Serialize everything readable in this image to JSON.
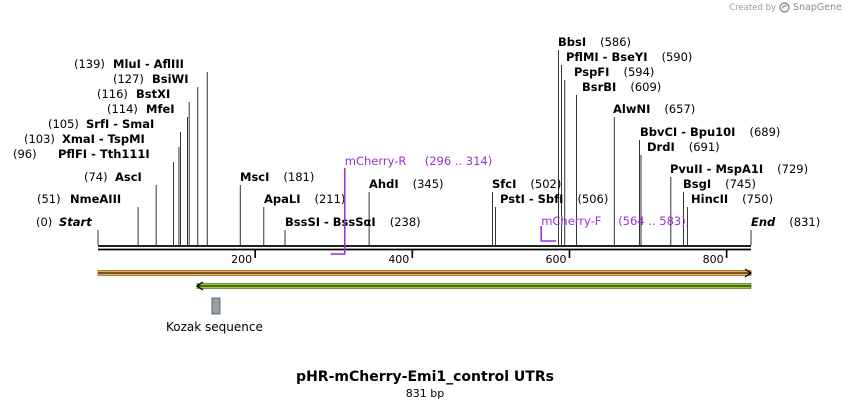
{
  "credit": {
    "prefix": "Created by",
    "brand": "SnapGene",
    "icon": "snapgene-logo-icon"
  },
  "title": "pHR-mCherry-Emi1_control UTRs",
  "length_label": "831 bp",
  "total_bp": 831,
  "ticks": [
    {
      "label": "200",
      "pos": 200
    },
    {
      "label": "400",
      "pos": 400
    },
    {
      "label": "600",
      "pos": 600
    },
    {
      "label": "800",
      "pos": 800
    }
  ],
  "sites": [
    {
      "id": "start",
      "num": "(0)",
      "name": "Start",
      "pos": 0,
      "style": "italic"
    },
    {
      "id": "nmeaiii",
      "num": "(51)",
      "name": "NmeAIII",
      "pos": 51
    },
    {
      "id": "asci",
      "num": "(74)",
      "name": "AscI",
      "pos": 74
    },
    {
      "id": "pflfi",
      "num": "(96)",
      "name": "PflFI  - Tth111I",
      "pos": 96
    },
    {
      "id": "xmai",
      "num": "(103)",
      "name": "XmaI  - TspMI",
      "pos": 103
    },
    {
      "id": "srfi",
      "num": "(105)",
      "name": "SrfI  - SmaI",
      "pos": 105
    },
    {
      "id": "mfei",
      "num": "(114)",
      "name": "MfeI",
      "pos": 114
    },
    {
      "id": "bstxi",
      "num": "(116)",
      "name": "BstXI",
      "pos": 116
    },
    {
      "id": "bsiwi",
      "num": "(127)",
      "name": "BsiWI",
      "pos": 127
    },
    {
      "id": "mlui",
      "num": "(139)",
      "name": "MluI  - AflIII",
      "pos": 139
    },
    {
      "id": "msci",
      "num": "(181)",
      "name": "MscI",
      "pos": 181
    },
    {
      "id": "apali",
      "num": "(211)",
      "name": "ApaLI",
      "pos": 211
    },
    {
      "id": "bsssi",
      "num": "(238)",
      "name": "BssSI  - BssSαI",
      "pos": 238
    },
    {
      "id": "ahdi",
      "num": "(345)",
      "name": "AhdI",
      "pos": 345
    },
    {
      "id": "sfci",
      "num": "(502)",
      "name": "SfcI",
      "pos": 502
    },
    {
      "id": "psti",
      "num": "(506)",
      "name": "PstI  - SbfI",
      "pos": 506
    },
    {
      "id": "bbsi",
      "num": "(586)",
      "name": "BbsI",
      "pos": 586
    },
    {
      "id": "pflmi",
      "num": "(590)",
      "name": "PflMI  - BseYI",
      "pos": 590
    },
    {
      "id": "pspfi",
      "num": "(594)",
      "name": "PspFI",
      "pos": 594
    },
    {
      "id": "bsrbi",
      "num": "(609)",
      "name": "BsrBI",
      "pos": 609
    },
    {
      "id": "alwni",
      "num": "(657)",
      "name": "AlwNI",
      "pos": 657
    },
    {
      "id": "bbvci",
      "num": "(689)",
      "name": "BbvCI  - Bpu10I",
      "pos": 689
    },
    {
      "id": "drdi",
      "num": "(691)",
      "name": "DrdI",
      "pos": 691
    },
    {
      "id": "pvuii",
      "num": "(729)",
      "name": "PvuII  - MspA1I",
      "pos": 729
    },
    {
      "id": "bsgi",
      "num": "(745)",
      "name": "BsgI",
      "pos": 745
    },
    {
      "id": "hincii",
      "num": "(750)",
      "name": "HincII",
      "pos": 750
    },
    {
      "id": "end",
      "num": "(831)",
      "name": "End",
      "pos": 831,
      "style": "italic"
    }
  ],
  "primers": [
    {
      "id": "mcherry-r",
      "name": "mCherry-R",
      "range": "(296 .. 314)",
      "start": 296,
      "end": 314,
      "strand": "reverse"
    },
    {
      "id": "mcherry-f",
      "name": "mCherry-F",
      "range": "(564 .. 583)",
      "start": 564,
      "end": 583,
      "strand": "forward"
    }
  ],
  "features": [
    {
      "id": "orange-feature",
      "start": 0,
      "end": 831,
      "direction": "forward",
      "color": "#f4a742",
      "outline": "#6b4a12"
    },
    {
      "id": "green-feature",
      "start": 126,
      "end": 831,
      "direction": "reverse",
      "color": "#9acd32",
      "outline": "#3a5a10"
    }
  ],
  "kozak": {
    "label": "Kozak sequence",
    "start": 145,
    "end": 154,
    "color": "#9aa0a8"
  }
}
